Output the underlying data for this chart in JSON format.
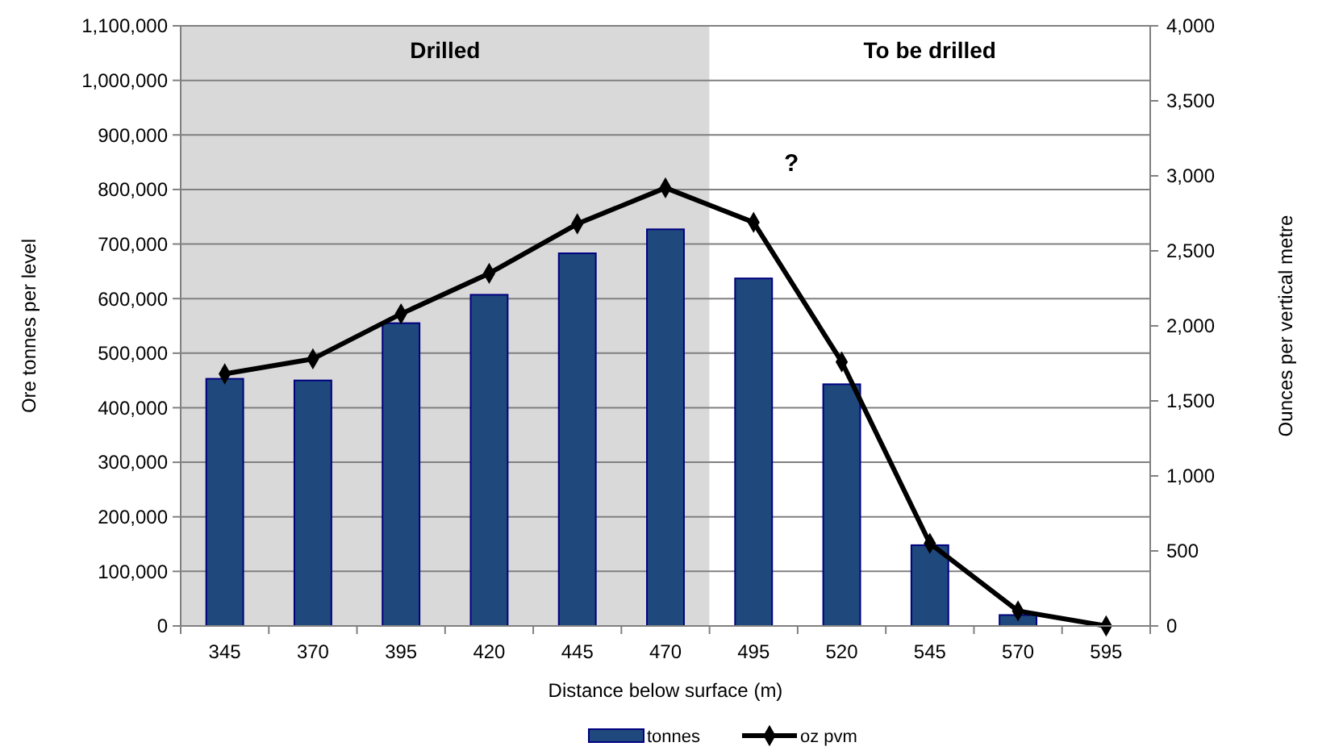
{
  "chart_data": {
    "type": "bar",
    "xlabel": "Distance below surface (m)",
    "ylabel": "Ore tonnes per level",
    "y2label": "Ounces per vertical metre",
    "categories": [
      "345",
      "370",
      "395",
      "420",
      "445",
      "470",
      "495",
      "520",
      "545",
      "570",
      "595"
    ],
    "series": [
      {
        "name": "tonnes",
        "color": "#1f497d",
        "values": [
          453000,
          450000,
          555000,
          607000,
          683000,
          727000,
          637000,
          443000,
          148000,
          20000,
          0
        ]
      },
      {
        "name": "oz pvm",
        "type": "line",
        "axis": "y2",
        "color": "#000000",
        "marker": "diamond",
        "values": [
          1680,
          1780,
          2080,
          2350,
          2680,
          2920,
          2690,
          1760,
          550,
          100,
          0
        ]
      }
    ],
    "ylim": [
      0,
      1100000
    ],
    "yticks": [
      {
        "value": 0,
        "label": "0"
      },
      {
        "value": 100000,
        "label": "100,000"
      },
      {
        "value": 200000,
        "label": "200,000"
      },
      {
        "value": 300000,
        "label": "300,000"
      },
      {
        "value": 400000,
        "label": "400,000"
      },
      {
        "value": 500000,
        "label": "500,000"
      },
      {
        "value": 600000,
        "label": "600,000"
      },
      {
        "value": 700000,
        "label": "700,000"
      },
      {
        "value": 800000,
        "label": "800,000"
      },
      {
        "value": 900000,
        "label": "900,000"
      },
      {
        "value": 1000000,
        "label": "1,000,000"
      },
      {
        "value": 1100000,
        "label": "1,100,000"
      }
    ],
    "y2lim": [
      0,
      4000
    ],
    "y2ticks": [
      {
        "value": 0,
        "label": "0"
      },
      {
        "value": 500,
        "label": "500"
      },
      {
        "value": 1000,
        "label": "1,000"
      },
      {
        "value": 1500,
        "label": "1,500"
      },
      {
        "value": 2000,
        "label": "2,000"
      },
      {
        "value": 2500,
        "label": "2,500"
      },
      {
        "value": 3000,
        "label": "3,000"
      },
      {
        "value": 3500,
        "label": "3,500"
      },
      {
        "value": 4000,
        "label": "4,000"
      }
    ],
    "bands": [
      {
        "axis": "x",
        "from": "345",
        "to": "470",
        "label": "Drilled",
        "color": "#d9d9d9"
      },
      {
        "axis": "x",
        "from": "495",
        "to": "595",
        "label": "To be drilled",
        "color": "#ffffff"
      }
    ],
    "annotations": [
      "?"
    ],
    "grid": "y",
    "legend": "bottom"
  }
}
